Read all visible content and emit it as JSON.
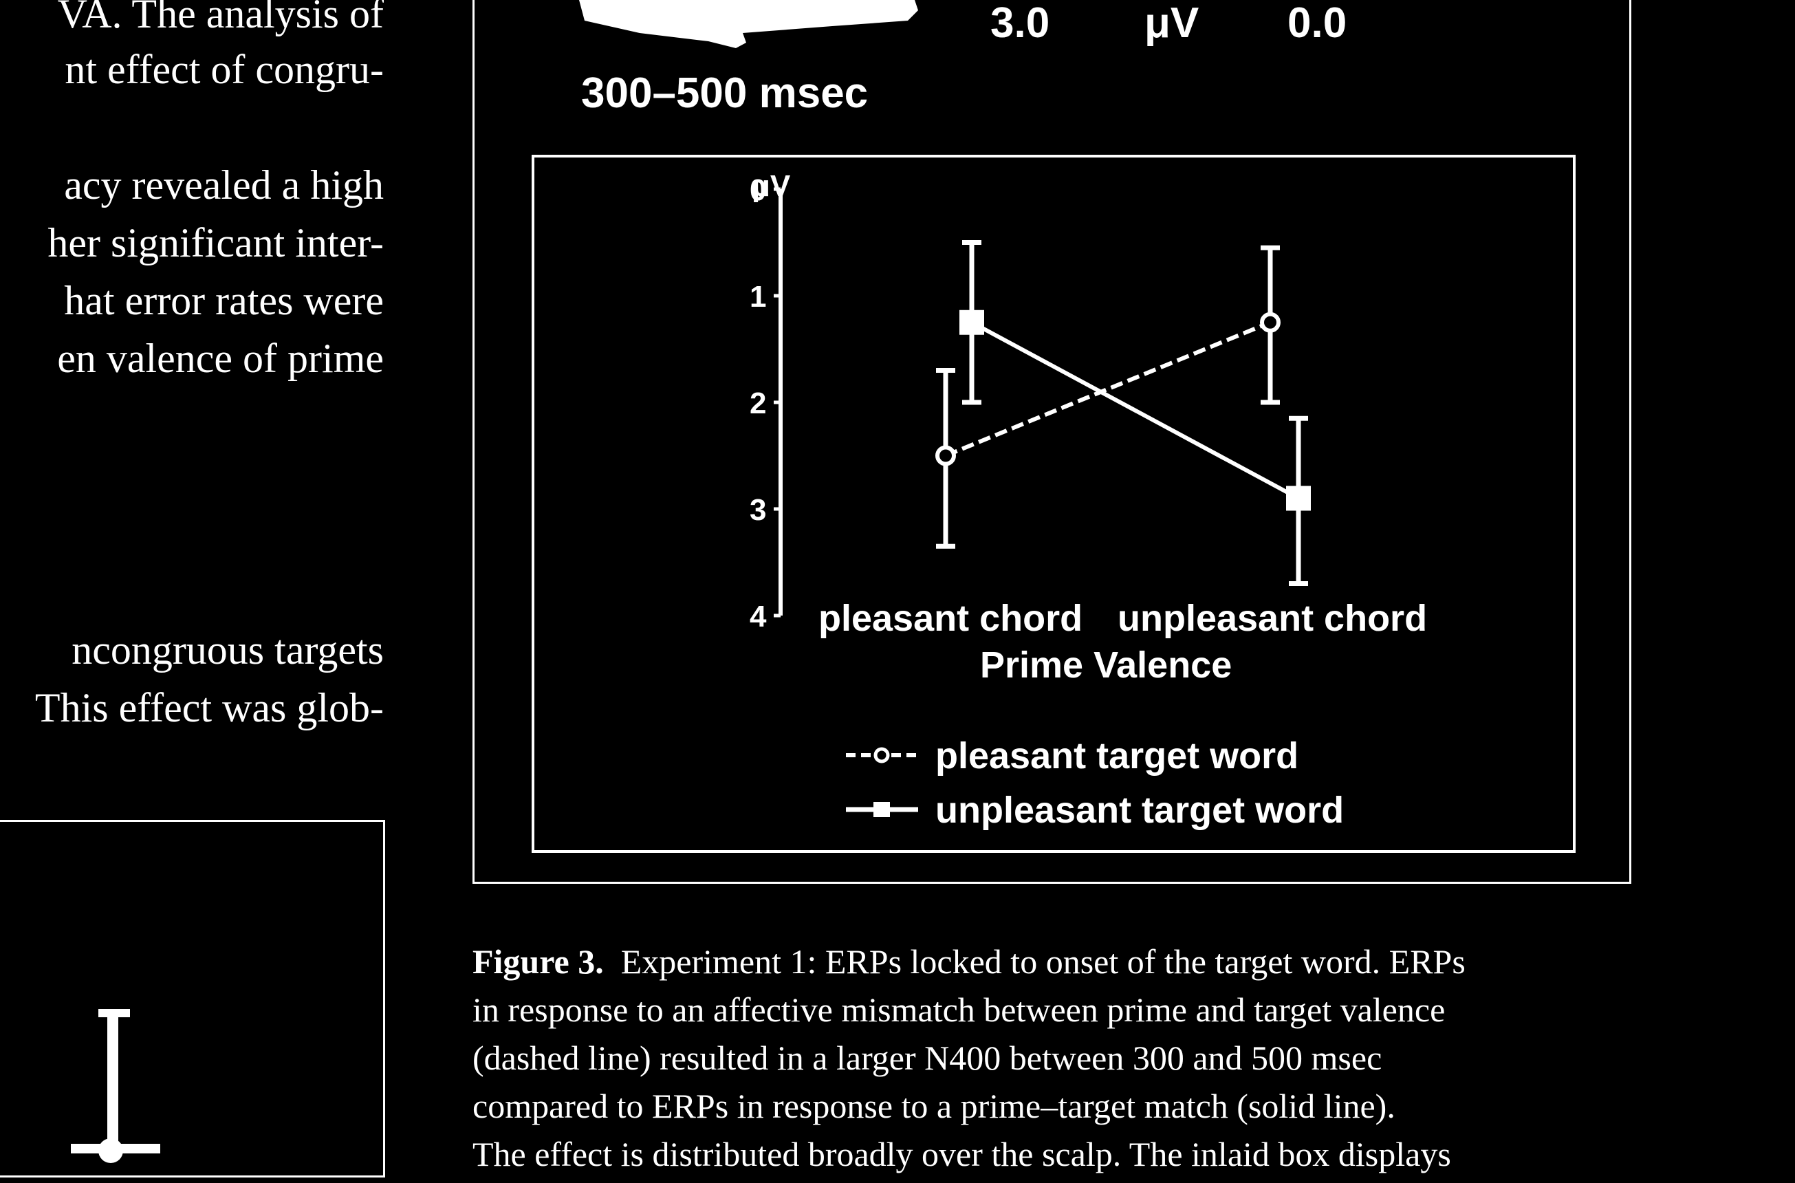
{
  "left_text": {
    "para1": [
      "VA. The analysis of",
      "nt effect of congru-"
    ],
    "para2": [
      "acy revealed a high",
      "her significant inter-",
      "hat error rates were",
      "en valence of prime"
    ],
    "para3": [
      "ncongruous targets",
      "This effect was glob-"
    ]
  },
  "figure": {
    "top_labels": {
      "left_value": "3.0",
      "unit": "μV",
      "right_value": "0.0"
    },
    "time_window": "300–500 msec",
    "legend": {
      "dashed_marker": "--o--",
      "solid_marker": "—■—",
      "pleasant": "pleasant target word",
      "unpleasant": "unpleasant target word"
    }
  },
  "chart_data": {
    "type": "line",
    "categories": [
      "pleasant chord",
      "unpleasant chord"
    ],
    "xlabel": "Prime Valence",
    "ylabel": "μV",
    "ylim": [
      0,
      4
    ],
    "y_inverted": true,
    "y_ticks": [
      "0",
      "1",
      "2",
      "3",
      "4"
    ],
    "series": [
      {
        "name": "pleasant target word",
        "style": "dashed",
        "marker": "open-circle",
        "values": [
          2.5,
          1.25
        ],
        "error_low": [
          1.7,
          0.55
        ],
        "error_high": [
          3.35,
          2.0
        ]
      },
      {
        "name": "unpleasant target word",
        "style": "solid",
        "marker": "filled-square",
        "values": [
          1.25,
          2.9
        ],
        "error_low": [
          0.5,
          2.15
        ],
        "error_high": [
          2.0,
          3.7
        ]
      }
    ]
  },
  "caption": {
    "label": "Figure 3.",
    "lines": [
      "Experiment 1: ERPs locked to onset of the target word. ERPs",
      "in response to an affective mismatch between prime and target valence",
      "(dashed line) resulted in a larger N400 between 300 and 500 msec",
      "compared to ERPs in response to a prime–target match (solid line).",
      "The effect is distributed broadly over the scalp. The inlaid box displays"
    ]
  }
}
